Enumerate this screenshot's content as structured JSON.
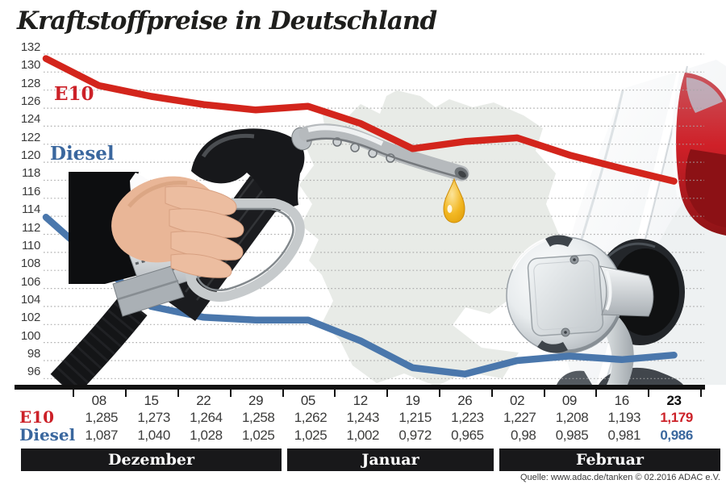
{
  "title": "Kraftstoffpreise in Deutschland",
  "source_note": "Quelle: www.adac.de/tanken   © 02.2016   ADAC e.V.",
  "colors": {
    "e10_line": "#d3251c",
    "e10_text": "#cc2128",
    "diesel_line": "#4a77ac",
    "diesel_text": "#3a679e",
    "grid": "#a6a6a6",
    "axis_bar": "#121212",
    "month_bar_bg": "#18181a",
    "title_text": "#1e1e1c",
    "map_fill": "#e8ebe7",
    "droplet_gold": "#efb41c",
    "taillight_red": "#c81e24"
  },
  "chart_data": {
    "type": "line",
    "title": "Kraftstoffpreise in Deutschland",
    "ylabel": "",
    "xlabel": "",
    "ylim": [
      96,
      132
    ],
    "y_ticks": [
      132,
      130,
      128,
      126,
      124,
      122,
      120,
      118,
      116,
      114,
      112,
      110,
      108,
      106,
      104,
      102,
      100,
      98,
      96
    ],
    "grid": "dotted horizontal lines every 2 units",
    "legend_position": "inline labels left of each line",
    "categories": [
      "08",
      "15",
      "22",
      "29",
      "05",
      "12",
      "19",
      "26",
      "02",
      "09",
      "16",
      "23"
    ],
    "month_groups": [
      {
        "label": "Dezember",
        "columns": 4
      },
      {
        "label": "Januar",
        "columns": 4
      },
      {
        "label": "Februar",
        "columns": 4
      }
    ],
    "highlight_last_column": true,
    "series": [
      {
        "name": "E10",
        "color": "#d3251c",
        "values": [
          1.285,
          1.273,
          1.264,
          1.258,
          1.262,
          1.243,
          1.215,
          1.223,
          1.227,
          1.208,
          1.193,
          1.179
        ],
        "values_display": [
          "1,285",
          "1,273",
          "1,264",
          "1,258",
          "1,262",
          "1,243",
          "1,215",
          "1,223",
          "1,227",
          "1,208",
          "1,193",
          "1,179"
        ],
        "edge_start_value": 1.315
      },
      {
        "name": "Diesel",
        "color": "#4a77ac",
        "values": [
          1.087,
          1.04,
          1.028,
          1.025,
          1.025,
          1.002,
          0.972,
          0.965,
          0.98,
          0.985,
          0.981,
          0.986
        ],
        "values_display": [
          "1,087",
          "1,040",
          "1,028",
          "1,025",
          "1,025",
          "1,002",
          "0,972",
          "0,965",
          "0,98",
          "0,985",
          "0,981",
          "0,986"
        ],
        "edge_start_value": 1.139
      }
    ]
  },
  "illustrations": [
    "hand-holding-fuel-nozzle",
    "fuel-droplet",
    "germany-map-silhouette",
    "car-rear-with-open-fuel-filler-door"
  ]
}
